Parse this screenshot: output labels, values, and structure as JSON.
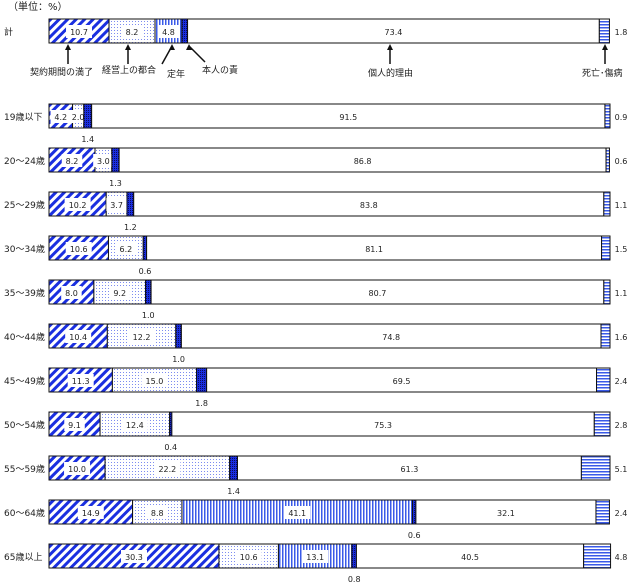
{
  "chart_data": {
    "type": "bar",
    "orientation": "horizontal-stacked-100",
    "unit_label": "（単位：%）",
    "series_names": [
      "契約期間の満了",
      "経営上の都合",
      "定年",
      "本人の責",
      "個人的理由",
      "死亡･傷病"
    ],
    "categories": [
      "計",
      "19歳以下",
      "20～24歳",
      "25～29歳",
      "30～34歳",
      "35～39歳",
      "40～44歳",
      "45～49歳",
      "50～54歳",
      "55～59歳",
      "60～64歳",
      "65歳以上"
    ],
    "series": [
      {
        "name": "契約期間の満了",
        "values": [
          10.7,
          4.2,
          8.2,
          10.2,
          10.6,
          8.0,
          10.4,
          11.3,
          9.1,
          10.0,
          14.9,
          30.3
        ]
      },
      {
        "name": "経営上の都合",
        "values": [
          8.2,
          2.0,
          3.0,
          3.7,
          6.2,
          9.2,
          12.2,
          15.0,
          12.4,
          22.2,
          8.8,
          10.6
        ]
      },
      {
        "name": "定年",
        "values": [
          4.8,
          null,
          null,
          null,
          null,
          null,
          null,
          null,
          null,
          null,
          41.1,
          13.1
        ]
      },
      {
        "name": "本人の責",
        "values": [
          1.0,
          1.4,
          1.3,
          1.2,
          0.6,
          1.0,
          1.0,
          1.8,
          0.4,
          1.4,
          0.6,
          0.8
        ]
      },
      {
        "name": "個人的理由",
        "values": [
          73.4,
          91.5,
          86.8,
          83.8,
          81.1,
          80.7,
          74.8,
          69.5,
          75.3,
          61.3,
          32.1,
          40.5
        ]
      },
      {
        "name": "死亡･傷病",
        "values": [
          1.8,
          0.9,
          0.6,
          1.1,
          1.5,
          1.1,
          1.6,
          2.4,
          2.8,
          5.1,
          2.4,
          4.8
        ]
      }
    ],
    "xlim": [
      0,
      100
    ],
    "colors": {
      "accent": "#1a2fe0",
      "border": "#111111"
    }
  }
}
